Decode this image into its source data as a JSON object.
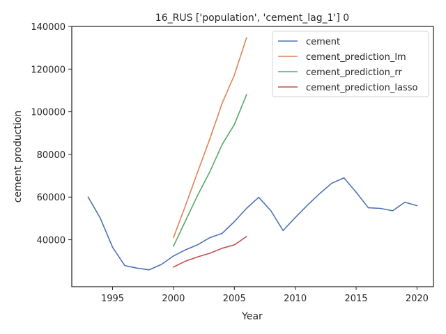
{
  "chart_data": {
    "type": "line",
    "title": "16_RUS ['population', 'cement_lag_1'] 0",
    "xlabel": "Year",
    "ylabel": "cement production",
    "xlim": [
      1991.65,
      2021.35
    ],
    "ylim": [
      18000,
      140000
    ],
    "xticks": [
      1995,
      2000,
      2005,
      2010,
      2015,
      2020
    ],
    "yticks": [
      40000,
      60000,
      80000,
      100000,
      120000,
      140000
    ],
    "grid": false,
    "legend_position": "top-right",
    "series": [
      {
        "name": "cement",
        "color": "#4c72b0",
        "x": [
          1993,
          1994,
          1995,
          1996,
          1997,
          1998,
          1999,
          2000,
          2001,
          2002,
          2003,
          2004,
          2005,
          2006,
          2007,
          2008,
          2009,
          2010,
          2011,
          2012,
          2013,
          2014,
          2015,
          2016,
          2017,
          2018,
          2019,
          2020
        ],
        "y": [
          60000,
          50000,
          36500,
          27900,
          26700,
          25900,
          28400,
          32400,
          35300,
          37700,
          41000,
          43000,
          48500,
          54700,
          59900,
          53600,
          44300,
          50400,
          56200,
          61600,
          66500,
          69000,
          62300,
          55000,
          54700,
          53600,
          57600,
          56000
        ]
      },
      {
        "name": "cement_prediction_lm",
        "color": "#dd8452",
        "x": [
          2000,
          2001,
          2002,
          2003,
          2004,
          2005,
          2006
        ],
        "y": [
          41000,
          56200,
          72000,
          87500,
          104000,
          117200,
          134700
        ]
      },
      {
        "name": "cement_prediction_rr",
        "color": "#55a868",
        "x": [
          2000,
          2001,
          2002,
          2003,
          2004,
          2005,
          2006
        ],
        "y": [
          37000,
          49000,
          61000,
          72000,
          84700,
          94000,
          108000
        ]
      },
      {
        "name": "cement_prediction_lasso",
        "color": "#c44e52",
        "x": [
          2000,
          2001,
          2002,
          2003,
          2004,
          2005,
          2006
        ],
        "y": [
          27200,
          30000,
          32000,
          33700,
          36000,
          37600,
          41500
        ]
      }
    ]
  }
}
